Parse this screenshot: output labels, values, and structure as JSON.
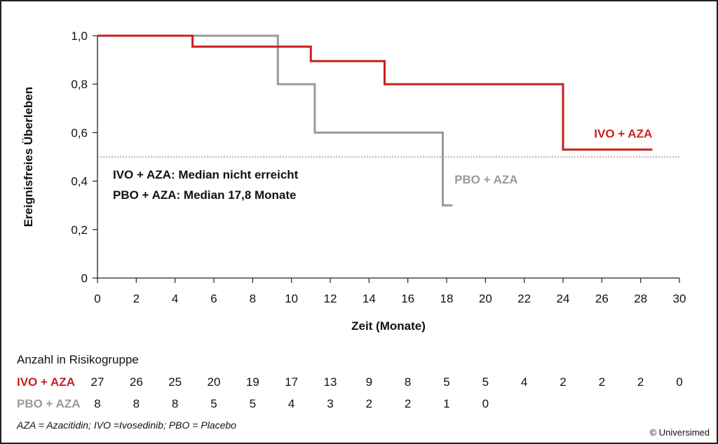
{
  "chart_data": {
    "type": "line",
    "step": true,
    "xlabel": "Zeit (Monate)",
    "ylabel": "Ereignisfreies Überleben",
    "xlim": [
      0,
      30
    ],
    "ylim": [
      0,
      1
    ],
    "x_ticks": [
      0,
      2,
      4,
      6,
      8,
      10,
      12,
      14,
      16,
      18,
      20,
      22,
      24,
      26,
      28,
      30
    ],
    "y_ticks": [
      0,
      0.2,
      0.4,
      0.6,
      0.8,
      1.0
    ],
    "y_tick_labels": [
      "0",
      "0,2",
      "0,4",
      "0,6",
      "0,8",
      "1,0"
    ],
    "reference_line": {
      "y": 0.5,
      "style": "dotted"
    },
    "series": [
      {
        "name": "PBO + AZA",
        "color": "#9a9a9a",
        "points": [
          [
            0,
            1.0
          ],
          [
            9.3,
            1.0
          ],
          [
            9.3,
            0.8
          ],
          [
            11.2,
            0.8
          ],
          [
            11.2,
            0.6
          ],
          [
            17.8,
            0.6
          ],
          [
            17.8,
            0.3
          ],
          [
            18.3,
            0.3
          ]
        ]
      },
      {
        "name": "IVO + AZA",
        "color": "#cc1f1f",
        "points": [
          [
            0,
            1.0
          ],
          [
            4.9,
            1.0
          ],
          [
            4.9,
            0.955
          ],
          [
            11.0,
            0.955
          ],
          [
            11.0,
            0.895
          ],
          [
            14.8,
            0.895
          ],
          [
            14.8,
            0.8
          ],
          [
            24.0,
            0.8
          ],
          [
            24.0,
            0.53
          ],
          [
            28.6,
            0.53
          ]
        ]
      }
    ],
    "series_labels": [
      {
        "text": "IVO + AZA",
        "x": 25.6,
        "y": 0.58,
        "color": "#cc1f1f"
      },
      {
        "text": "PBO + AZA",
        "x": 18.4,
        "y": 0.39,
        "color": "#9a9a9a"
      }
    ],
    "annotations": [
      "IVO + AZA: Median nicht erreicht",
      "PBO + AZA: Median 17,8 Monate"
    ]
  },
  "risk_table": {
    "title": "Anzahl in Risikogruppe",
    "rows": [
      {
        "name": "IVO + AZA",
        "color": "#cc1f1f",
        "values": [
          "27",
          "26",
          "25",
          "20",
          "19",
          "17",
          "13",
          "9",
          "8",
          "5",
          "5",
          "4",
          "2",
          "2",
          "2",
          "0"
        ]
      },
      {
        "name": "PBO + AZA",
        "color": "#9a9a9a",
        "values": [
          "8",
          "8",
          "8",
          "5",
          "5",
          "4",
          "3",
          "2",
          "2",
          "1",
          "0"
        ]
      }
    ]
  },
  "footnote": "AZA = Azacitidin; IVO =Ivosedinib; PBO = Placebo",
  "copyright": "© Universimed"
}
